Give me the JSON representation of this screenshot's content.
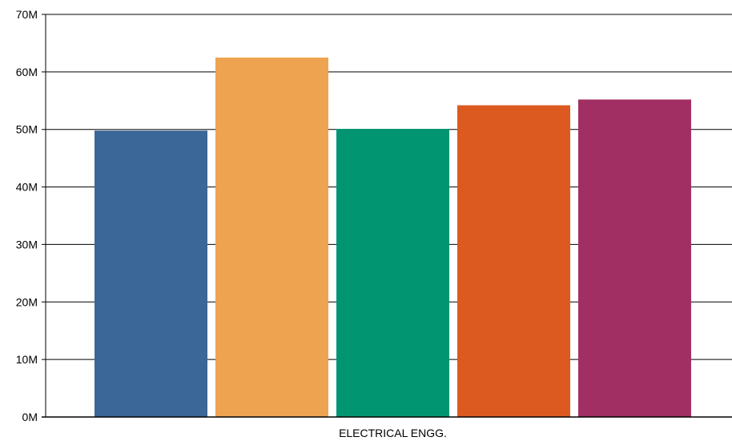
{
  "chart_data": {
    "type": "bar",
    "categories": [
      "ELECTRICAL ENGG."
    ],
    "series": [
      {
        "values": [
          49800000
        ],
        "color": "#3a6797"
      },
      {
        "values": [
          62500000
        ],
        "color": "#eea350"
      },
      {
        "values": [
          50100000
        ],
        "color": "#029571"
      },
      {
        "values": [
          54200000
        ],
        "color": "#dc5a1f"
      },
      {
        "values": [
          55200000
        ],
        "color": "#a22f63"
      }
    ],
    "ylim": [
      0,
      70000000
    ],
    "yticks": [
      {
        "value": 0,
        "label": "0M"
      },
      {
        "value": 10000000,
        "label": "10M"
      },
      {
        "value": 20000000,
        "label": "20M"
      },
      {
        "value": 30000000,
        "label": "30M"
      },
      {
        "value": 40000000,
        "label": "40M"
      },
      {
        "value": 50000000,
        "label": "50M"
      },
      {
        "value": 60000000,
        "label": "60M"
      },
      {
        "value": 70000000,
        "label": "70M"
      }
    ],
    "xlabel": "",
    "ylabel": "",
    "grid": true,
    "legend": "none"
  }
}
